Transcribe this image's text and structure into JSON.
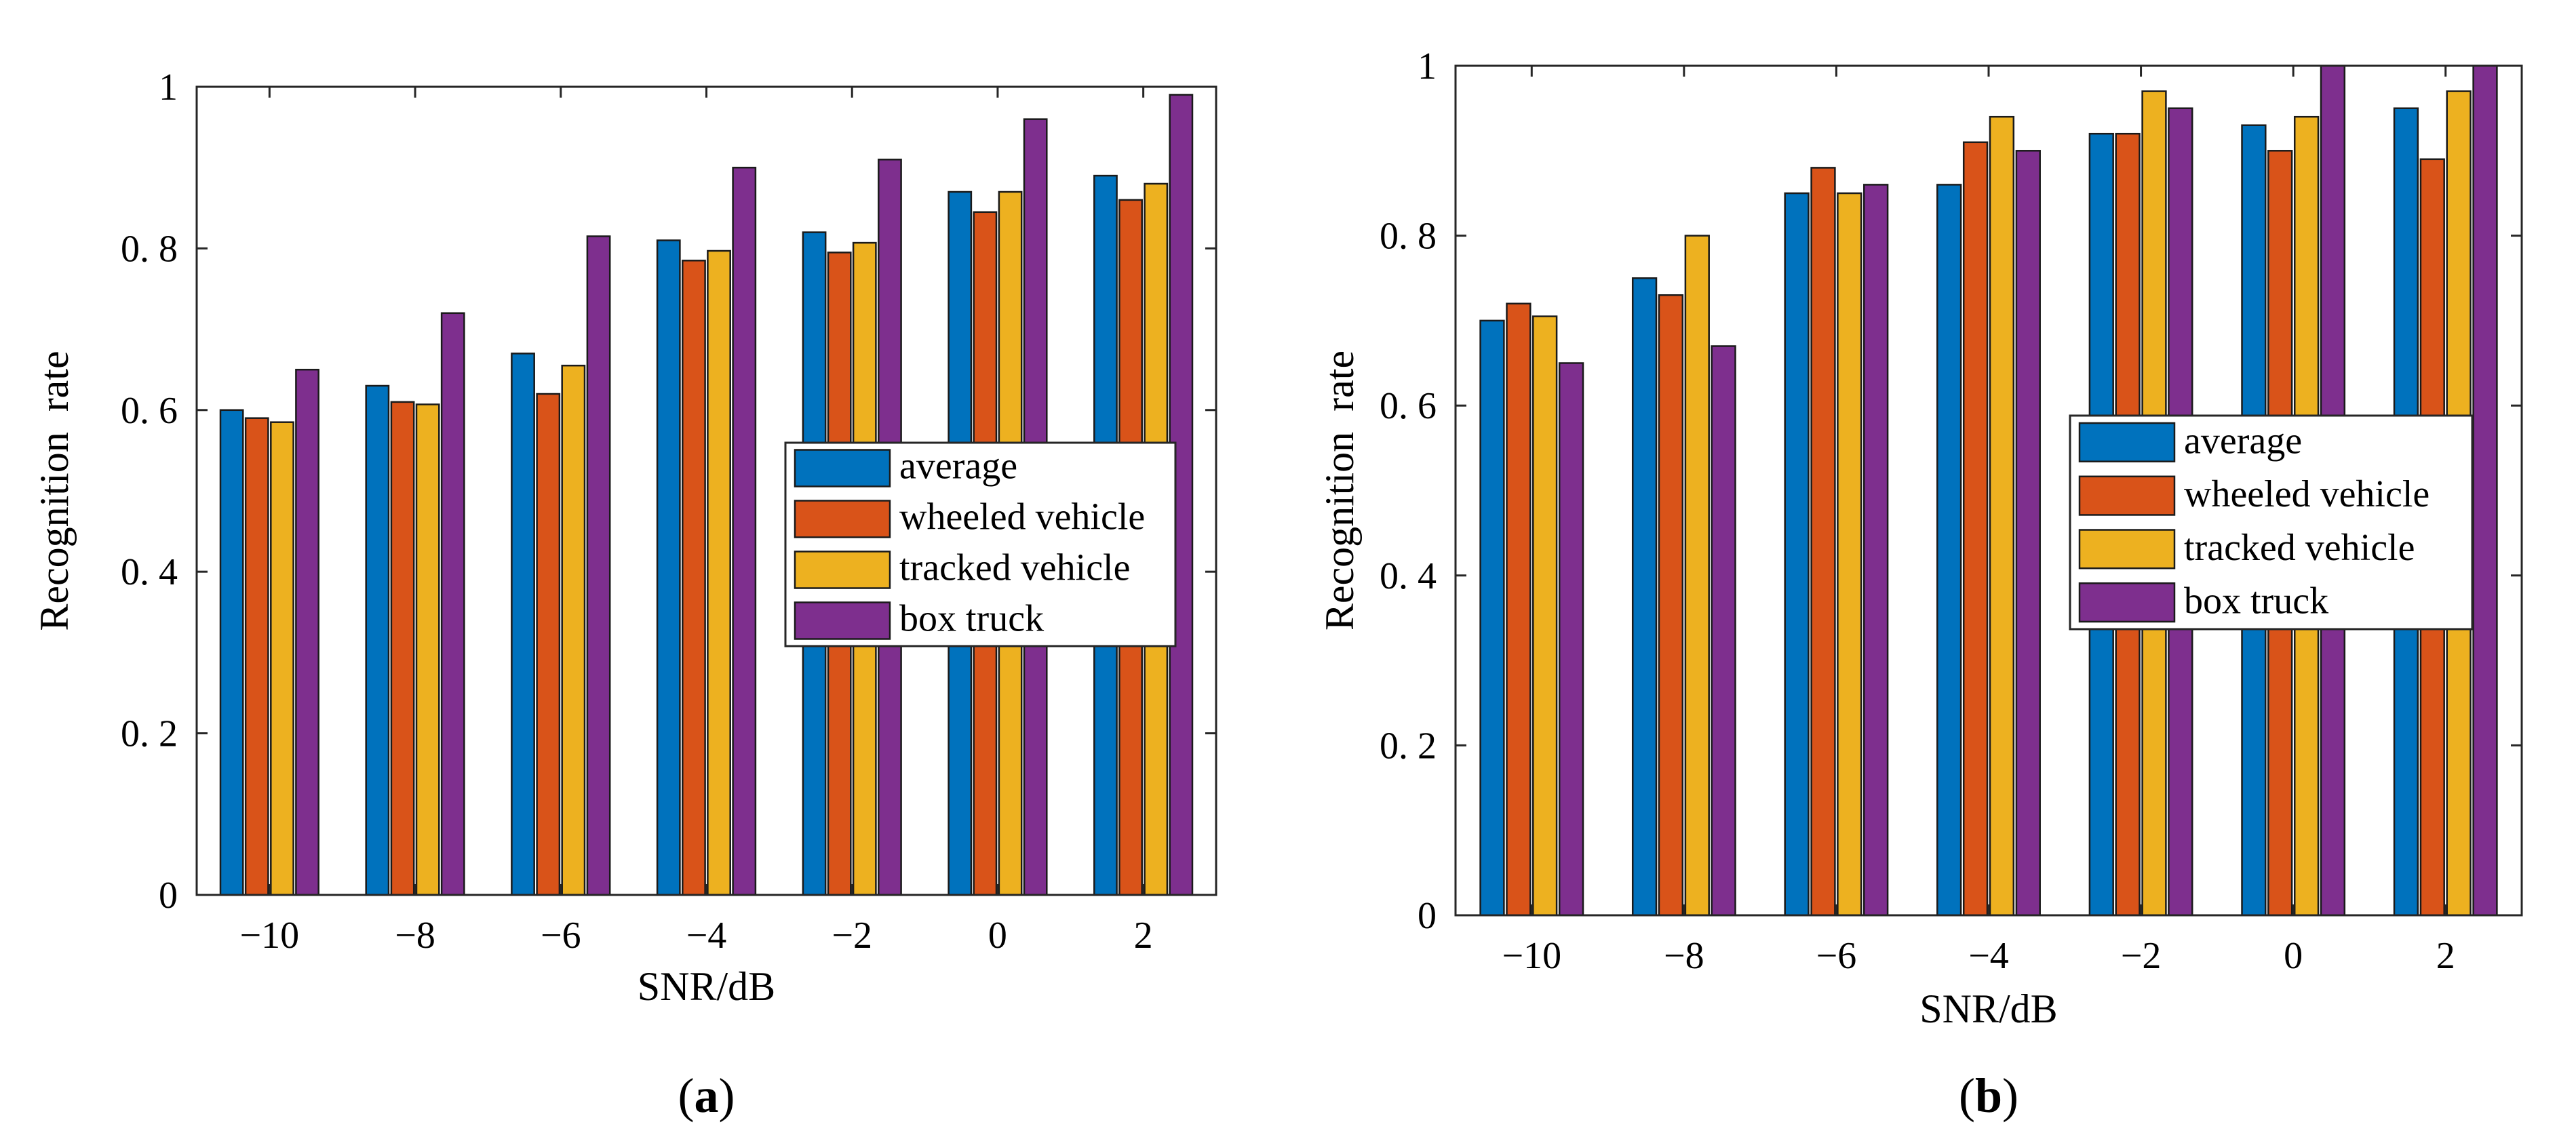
{
  "chart_data": [
    {
      "type": "bar",
      "panel_label": "(a)",
      "panel_letter": "a",
      "categories": [
        "−10",
        "−8",
        "−6",
        "−4",
        "−2",
        "0",
        "2"
      ],
      "series": [
        {
          "name": "average",
          "color": "#0072BD",
          "values": [
            0.6,
            0.63,
            0.67,
            0.81,
            0.82,
            0.87,
            0.89
          ]
        },
        {
          "name": "wheeled vehicle",
          "color": "#D95319",
          "values": [
            0.59,
            0.61,
            0.62,
            0.785,
            0.795,
            0.845,
            0.86
          ]
        },
        {
          "name": "tracked vehicle",
          "color": "#EDB120",
          "values": [
            0.585,
            0.607,
            0.655,
            0.797,
            0.807,
            0.87,
            0.88
          ]
        },
        {
          "name": "box truck",
          "color": "#7E2F8E",
          "values": [
            0.65,
            0.72,
            0.815,
            0.9,
            0.91,
            0.96,
            0.99
          ]
        }
      ],
      "xlabel": "SNR/dB",
      "ylabel": "Recognition  rate",
      "ylim": [
        0,
        1
      ],
      "yticks": [
        {
          "value": 0,
          "label": "0"
        },
        {
          "value": 0.2,
          "label": "0. 2"
        },
        {
          "value": 0.4,
          "label": "0. 4"
        },
        {
          "value": 0.6,
          "label": "0. 6"
        },
        {
          "value": 0.8,
          "label": "0. 8"
        },
        {
          "value": 1,
          "label": "1"
        }
      ],
      "grid": false,
      "legend_position": "right"
    },
    {
      "type": "bar",
      "panel_label": "(b)",
      "panel_letter": "b",
      "categories": [
        "−10",
        "−8",
        "−6",
        "−4",
        "−2",
        "0",
        "2"
      ],
      "series": [
        {
          "name": "average",
          "color": "#0072BD",
          "values": [
            0.7,
            0.75,
            0.85,
            0.86,
            0.92,
            0.93,
            0.95
          ]
        },
        {
          "name": "wheeled vehicle",
          "color": "#D95319",
          "values": [
            0.72,
            0.73,
            0.88,
            0.91,
            0.92,
            0.9,
            0.89
          ]
        },
        {
          "name": "tracked vehicle",
          "color": "#EDB120",
          "values": [
            0.705,
            0.8,
            0.85,
            0.94,
            0.97,
            0.94,
            0.97
          ]
        },
        {
          "name": "box truck",
          "color": "#7E2F8E",
          "values": [
            0.65,
            0.67,
            0.86,
            0.9,
            0.95,
            1.0,
            1.0
          ]
        }
      ],
      "xlabel": "SNR/dB",
      "ylabel": "Recognition  rate",
      "ylim": [
        0,
        1
      ],
      "yticks": [
        {
          "value": 0,
          "label": "0"
        },
        {
          "value": 0.2,
          "label": "0. 2"
        },
        {
          "value": 0.4,
          "label": "0. 4"
        },
        {
          "value": 0.6,
          "label": "0. 6"
        },
        {
          "value": 0.8,
          "label": "0. 8"
        },
        {
          "value": 1,
          "label": "1"
        }
      ],
      "grid": false,
      "legend_position": "right"
    }
  ]
}
